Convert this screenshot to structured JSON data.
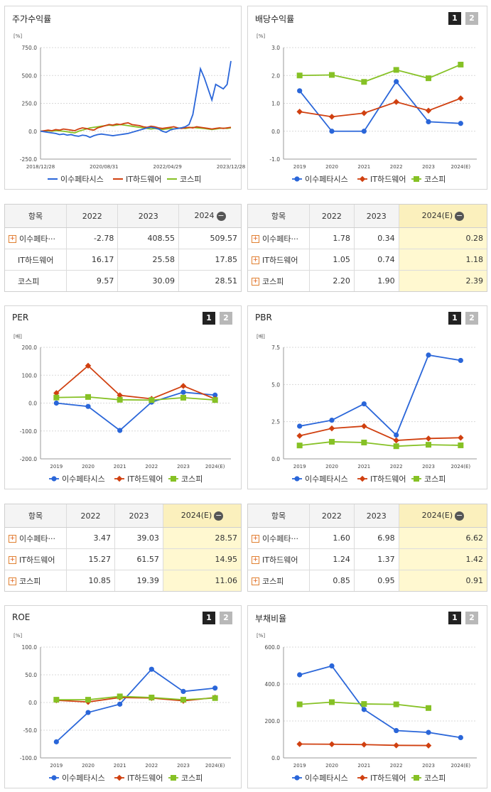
{
  "colors": {
    "issu": "#2a66d9",
    "ithw": "#d04010",
    "kospi": "#86c125"
  },
  "legend": {
    "s1": "이수페타시스",
    "s2": "IT하드웨어",
    "s3": "코스피"
  },
  "panels": {
    "stock": {
      "title": "주가수익률",
      "unit": "[%]"
    },
    "div": {
      "title": "배당수익률",
      "unit": "[%]",
      "btn1": "1",
      "btn2": "2"
    },
    "per": {
      "title": "PER",
      "unit": "[배]",
      "btn1": "1",
      "btn2": "2"
    },
    "pbr": {
      "title": "PBR",
      "unit": "[배]",
      "btn1": "1",
      "btn2": "2"
    },
    "roe": {
      "title": "ROE",
      "unit": "[%]",
      "btn1": "1",
      "btn2": "2"
    },
    "debt": {
      "title": "부채비율",
      "unit": "[%]",
      "btn1": "1",
      "btn2": "2"
    }
  },
  "tables": {
    "stock": {
      "h0": "항목",
      "h1": "2022",
      "h2": "2023",
      "h3": "2024",
      "rows": [
        {
          "name": "이수페타···",
          "v1": "-2.78",
          "v2": "408.55",
          "v3": "509.57"
        },
        {
          "name": "IT하드웨어",
          "v1": "16.17",
          "v2": "25.58",
          "v3": "17.85"
        },
        {
          "name": "코스피",
          "v1": "9.57",
          "v2": "30.09",
          "v3": "28.51"
        }
      ]
    },
    "div": {
      "h0": "항목",
      "h1": "2022",
      "h2": "2023",
      "h3": "2024(E)",
      "rows": [
        {
          "name": "이수페타···",
          "v1": "1.78",
          "v2": "0.34",
          "v3": "0.28"
        },
        {
          "name": "IT하드웨어",
          "v1": "1.05",
          "v2": "0.74",
          "v3": "1.18"
        },
        {
          "name": "코스피",
          "v1": "2.20",
          "v2": "1.90",
          "v3": "2.39"
        }
      ]
    },
    "per": {
      "h0": "항목",
      "h1": "2022",
      "h2": "2023",
      "h3": "2024(E)",
      "rows": [
        {
          "name": "이수페타···",
          "v1": "3.47",
          "v2": "39.03",
          "v3": "28.57"
        },
        {
          "name": "IT하드웨어",
          "v1": "15.27",
          "v2": "61.57",
          "v3": "14.95"
        },
        {
          "name": "코스피",
          "v1": "10.85",
          "v2": "19.39",
          "v3": "11.06"
        }
      ]
    },
    "pbr": {
      "h0": "항목",
      "h1": "2022",
      "h2": "2023",
      "h3": "2024(E)",
      "rows": [
        {
          "name": "이수페타···",
          "v1": "1.60",
          "v2": "6.98",
          "v3": "6.62"
        },
        {
          "name": "IT하드웨어",
          "v1": "1.24",
          "v2": "1.37",
          "v3": "1.42"
        },
        {
          "name": "코스피",
          "v1": "0.85",
          "v2": "0.95",
          "v3": "0.91"
        }
      ]
    }
  },
  "chart_data": [
    {
      "id": "stock",
      "type": "line",
      "ylim": [
        -250,
        750
      ],
      "yticks": [
        "750.0",
        "500.0",
        "250.0",
        "0.0",
        "-250.0"
      ],
      "x_ticks": [
        "2018/12/28",
        "2020/08/31",
        "2022/04/29",
        "2023/12/28"
      ],
      "series": [
        {
          "name": "이수페타시스",
          "values": [
            0,
            -5,
            -10,
            -15,
            -20,
            -30,
            -25,
            -35,
            -30,
            -40,
            -45,
            -35,
            -40,
            -55,
            -40,
            -30,
            -25,
            -30,
            -35,
            -40,
            -35,
            -30,
            -25,
            -20,
            -10,
            0,
            10,
            20,
            30,
            35,
            30,
            20,
            0,
            -10,
            10,
            20,
            25,
            30,
            40,
            60,
            150,
            350,
            560,
            480,
            380,
            280,
            420,
            400,
            380,
            420,
            630
          ]
        },
        {
          "name": "IT하드웨어",
          "values": [
            0,
            5,
            10,
            5,
            15,
            10,
            20,
            15,
            10,
            5,
            20,
            30,
            25,
            15,
            10,
            30,
            40,
            50,
            60,
            55,
            65,
            60,
            70,
            75,
            60,
            55,
            50,
            40,
            35,
            45,
            40,
            30,
            25,
            30,
            35,
            40,
            30,
            25,
            30,
            35,
            30,
            40,
            35,
            30,
            25,
            20,
            25,
            30,
            25,
            30,
            35
          ]
        },
        {
          "name": "코스피",
          "values": [
            0,
            2,
            5,
            0,
            5,
            3,
            0,
            -5,
            -10,
            -15,
            0,
            10,
            20,
            30,
            35,
            40,
            45,
            50,
            55,
            50,
            55,
            60,
            55,
            50,
            45,
            40,
            35,
            30,
            25,
            20,
            25,
            20,
            15,
            20,
            25,
            20,
            25,
            30,
            25,
            30,
            35,
            30,
            28,
            25,
            20,
            15,
            20,
            25,
            28,
            25,
            30
          ]
        }
      ]
    },
    {
      "id": "div",
      "type": "line",
      "ylim": [
        -1,
        3
      ],
      "yticks": [
        "3.0",
        "2.0",
        "1.0",
        "0.0",
        "-1.0"
      ],
      "categories": [
        "2019",
        "2020",
        "2021",
        "2022",
        "2023",
        "2024(E)"
      ],
      "series": [
        {
          "name": "이수페타시스",
          "values": [
            1.45,
            0.0,
            0.0,
            1.78,
            0.34,
            0.28
          ]
        },
        {
          "name": "IT하드웨어",
          "values": [
            0.7,
            0.52,
            0.65,
            1.05,
            0.74,
            1.18
          ]
        },
        {
          "name": "코스피",
          "values": [
            2.0,
            2.02,
            1.77,
            2.2,
            1.9,
            2.39
          ]
        }
      ]
    },
    {
      "id": "per",
      "type": "line",
      "ylim": [
        -200,
        200
      ],
      "yticks": [
        "200.0",
        "100.0",
        "0.0",
        "-100.0",
        "-200.0"
      ],
      "categories": [
        "2019",
        "2020",
        "2021",
        "2022",
        "2023",
        "2024(E)"
      ],
      "series": [
        {
          "name": "이수페타시스",
          "values": [
            0,
            -12,
            -98,
            3.47,
            39.03,
            28.57
          ]
        },
        {
          "name": "IT하드웨어",
          "values": [
            36,
            134,
            28,
            15.27,
            61.57,
            14.95
          ]
        },
        {
          "name": "코스피",
          "values": [
            20,
            22,
            12,
            10.85,
            19.39,
            11.06
          ]
        }
      ]
    },
    {
      "id": "pbr",
      "type": "line",
      "ylim": [
        0,
        7.5
      ],
      "yticks": [
        "7.5",
        "5.0",
        "2.5",
        "0.0"
      ],
      "categories": [
        "2019",
        "2020",
        "2021",
        "2022",
        "2023",
        "2024(E)"
      ],
      "series": [
        {
          "name": "이수페타시스",
          "values": [
            2.2,
            2.6,
            3.7,
            1.6,
            6.98,
            6.62
          ]
        },
        {
          "name": "IT하드웨어",
          "values": [
            1.55,
            2.05,
            2.2,
            1.24,
            1.37,
            1.42
          ]
        },
        {
          "name": "코스피",
          "values": [
            0.9,
            1.15,
            1.1,
            0.85,
            0.95,
            0.91
          ]
        }
      ]
    },
    {
      "id": "roe",
      "type": "line",
      "ylim": [
        -100,
        100
      ],
      "yticks": [
        "100.0",
        "50.0",
        "0.0",
        "-50.0",
        "-100.0"
      ],
      "categories": [
        "2019",
        "2020",
        "2021",
        "2022",
        "2023",
        "2024(E)"
      ],
      "series": [
        {
          "name": "이수페타시스",
          "values": [
            -71,
            -18,
            -3,
            60,
            20,
            26
          ]
        },
        {
          "name": "IT하드웨어",
          "values": [
            4,
            1,
            9,
            8,
            3,
            9
          ]
        },
        {
          "name": "코스피",
          "values": [
            5,
            5,
            11,
            9,
            5,
            8
          ]
        }
      ]
    },
    {
      "id": "debt",
      "type": "line",
      "ylim": [
        0,
        600
      ],
      "yticks": [
        "600.0",
        "400.0",
        "200.0",
        "0.0"
      ],
      "categories": [
        "2019",
        "2020",
        "2021",
        "2022",
        "2023",
        "2024(E)"
      ],
      "series": [
        {
          "name": "이수페타시스",
          "values": [
            450,
            498,
            262,
            148,
            138,
            110
          ]
        },
        {
          "name": "IT하드웨어",
          "values": [
            75,
            74,
            72,
            68,
            67,
            null
          ]
        },
        {
          "name": "코스피",
          "values": [
            290,
            302,
            292,
            290,
            270,
            null
          ]
        }
      ]
    }
  ]
}
